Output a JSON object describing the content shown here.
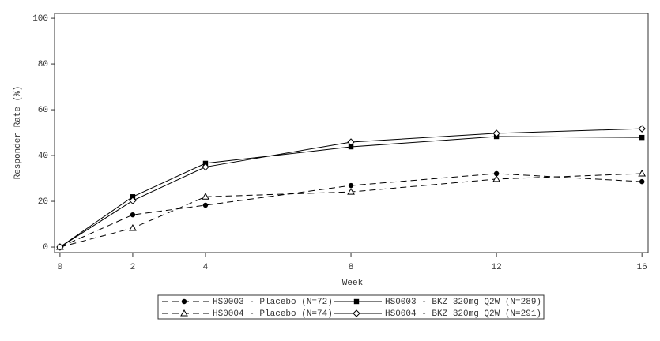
{
  "chart_data": {
    "type": "line",
    "x": [
      0,
      2,
      4,
      8,
      12,
      16
    ],
    "xlabel": "Week",
    "ylabel": "Responder Rate (%)",
    "xlim": [
      -0.15,
      16.17
    ],
    "ylim": [
      -2.4,
      102.1
    ],
    "xticks": [
      0,
      2,
      4,
      8,
      12,
      16
    ],
    "yticks": [
      0,
      20,
      40,
      60,
      80,
      100
    ],
    "series": [
      {
        "name": "HS0003 - Placebo (N=72)",
        "color": "#000000",
        "marker": "circle",
        "dashed": true,
        "values": [
          0,
          14.1,
          18.3,
          26.9,
          32.1,
          28.6
        ]
      },
      {
        "name": "HS0004 - Placebo (N=74)",
        "color": "#000000",
        "marker": "triangle",
        "dashed": true,
        "values": [
          0,
          8.3,
          22.0,
          24.1,
          29.7,
          32.1
        ]
      },
      {
        "name": "HS0003 - BKZ 320mg Q2W (N=289)",
        "color": "#000000",
        "marker": "square",
        "dashed": false,
        "values": [
          0,
          22.0,
          36.6,
          43.8,
          48.3,
          47.9
        ]
      },
      {
        "name": "HS0004 - BKZ 320mg Q2W (N=291)",
        "color": "#000000",
        "marker": "diamond",
        "dashed": false,
        "values": [
          0,
          20.3,
          35.0,
          45.9,
          49.7,
          51.7
        ]
      }
    ]
  }
}
